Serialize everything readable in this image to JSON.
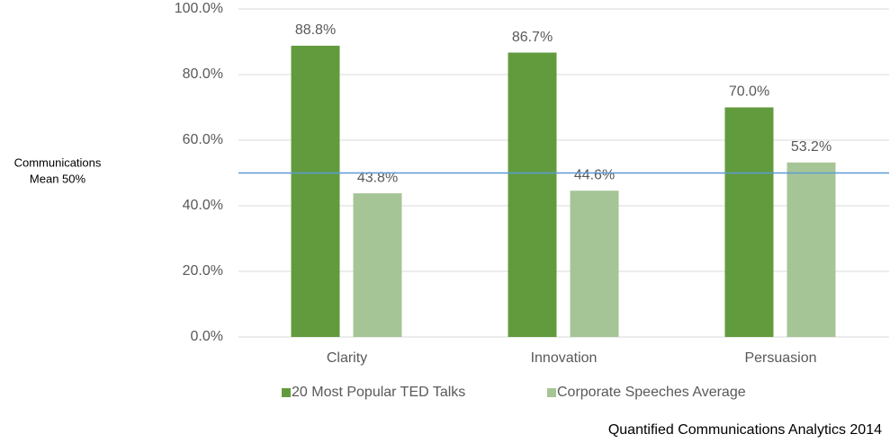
{
  "chart_data": {
    "type": "bar",
    "categories": [
      "Clarity",
      "Innovation",
      "Persuasion"
    ],
    "series": [
      {
        "name": "20 Most Popular TED Talks",
        "color": "#629b3e",
        "values": [
          88.8,
          86.7,
          70.0
        ],
        "value_labels": [
          "88.8%",
          "86.7%",
          "70.0%"
        ]
      },
      {
        "name": "Corporate Speeches Average",
        "color": "#a6c596",
        "values": [
          43.8,
          44.6,
          53.2
        ],
        "value_labels": [
          "43.8%",
          "44.6%",
          "53.2%"
        ]
      }
    ],
    "ylim": [
      0,
      100
    ],
    "yticks": [
      {
        "value": 0,
        "label": "0.0%"
      },
      {
        "value": 20,
        "label": "20.0%"
      },
      {
        "value": 40,
        "label": "40.0%"
      },
      {
        "value": 60,
        "label": "60.0%"
      },
      {
        "value": 80,
        "label": "80.0%"
      },
      {
        "value": 100,
        "label": "100.0%"
      }
    ],
    "grid": true,
    "reference_line": {
      "value": 50,
      "color": "#5b9bd5"
    },
    "annotation": [
      "Communications",
      "Mean 50%"
    ],
    "source": "Quantified Communications Analytics 2014"
  }
}
